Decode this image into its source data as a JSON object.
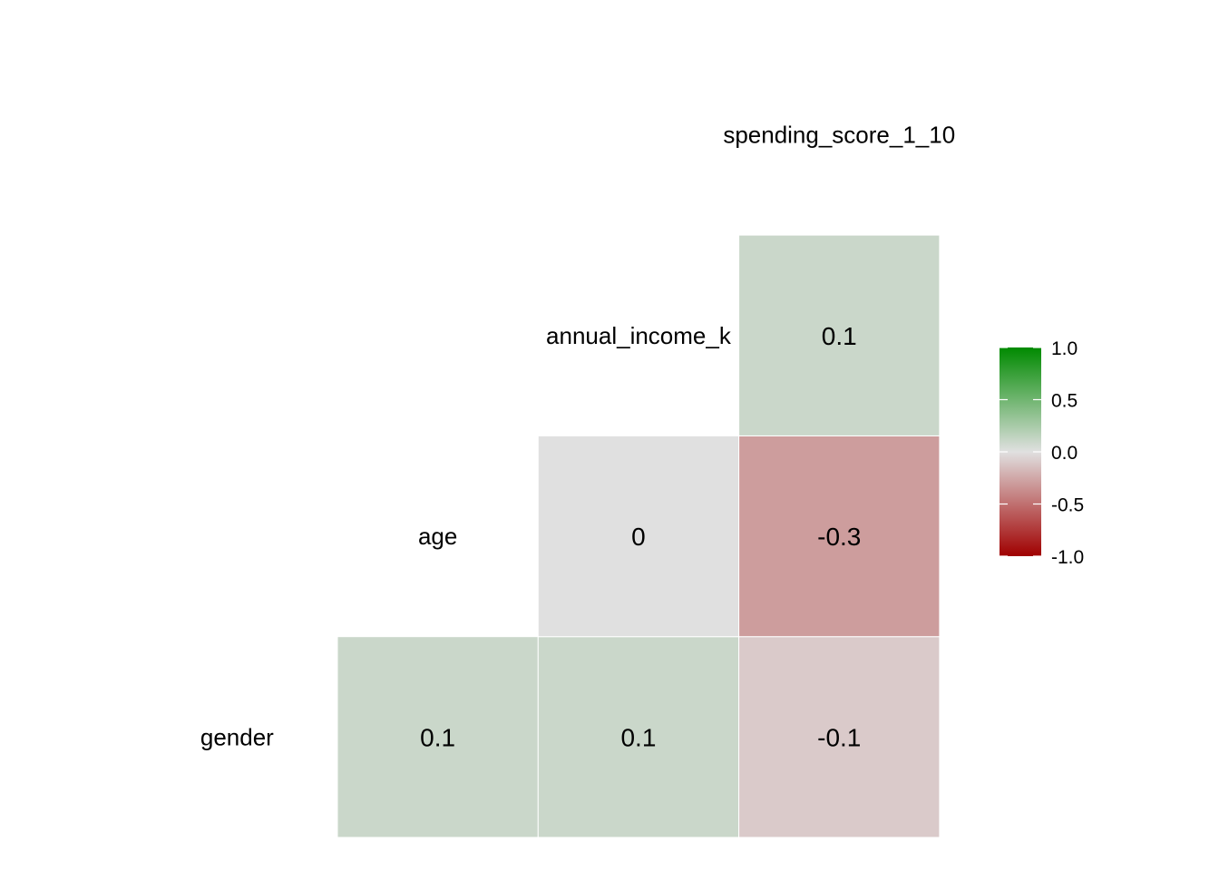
{
  "chart_data": {
    "type": "heatmap",
    "subtype": "lower-triangle correlation matrix",
    "variables": [
      "gender",
      "age",
      "annual_income_k",
      "spending_score_1_10"
    ],
    "cells": [
      {
        "row": "gender",
        "col": "age",
        "value": 0.1,
        "label": "0.1"
      },
      {
        "row": "gender",
        "col": "annual_income_k",
        "value": 0.1,
        "label": "0.1"
      },
      {
        "row": "gender",
        "col": "spending_score_1_10",
        "value": -0.1,
        "label": "-0.1"
      },
      {
        "row": "age",
        "col": "annual_income_k",
        "value": 0.0,
        "label": "0"
      },
      {
        "row": "age",
        "col": "spending_score_1_10",
        "value": -0.3,
        "label": "-0.3"
      },
      {
        "row": "annual_income_k",
        "col": "spending_score_1_10",
        "value": 0.1,
        "label": "0.1"
      }
    ],
    "color_scale": {
      "range": [
        -1.0,
        1.0
      ],
      "low": "#a00000",
      "mid": "#e0e0e0",
      "high": "#008a00",
      "ticks": [
        1.0,
        0.5,
        0.0,
        -0.5,
        -1.0
      ],
      "tick_labels": [
        "1.0",
        "0.5",
        "0.0",
        "-0.5",
        "-1.0"
      ]
    },
    "legend_position": "right"
  }
}
